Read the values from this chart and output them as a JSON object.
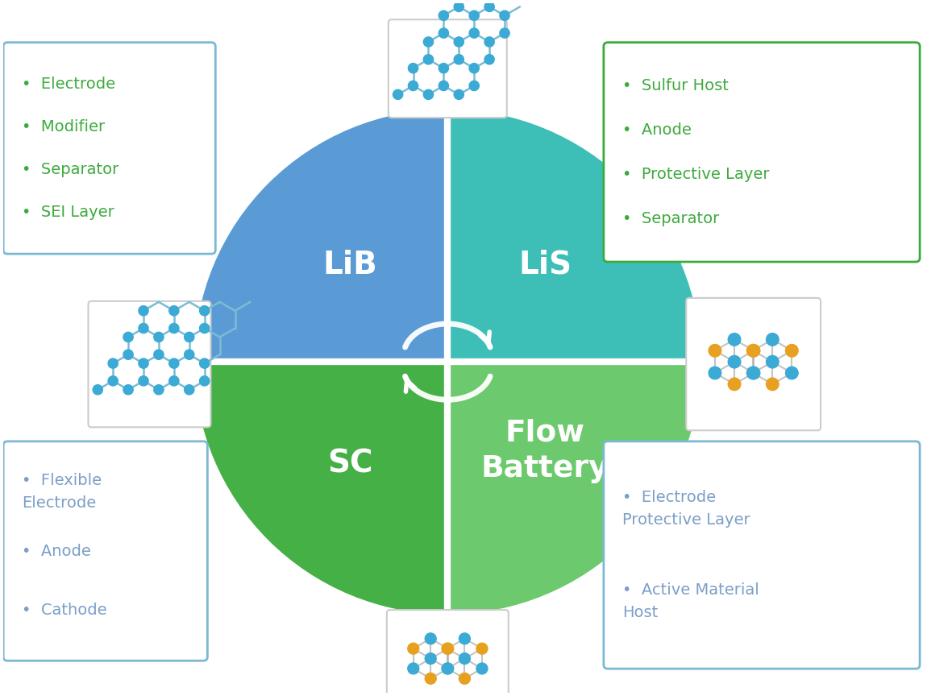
{
  "fig_width": 11.81,
  "fig_height": 8.64,
  "background_color": "#ffffff",
  "lib_color": "#5B9BD5",
  "lis_color": "#3DBFB8",
  "sc_color": "#45B045",
  "flow_color": "#6DC96D",
  "white": "#ffffff",
  "green_text": "#3DAA3D",
  "blue_text": "#7B9EC8",
  "lib_border": "#7BB8D4",
  "lis_border": "#3DAA3D",
  "sc_border": "#7BB8D4",
  "flow_border": "#7BB8D4",
  "lib_bullets": [
    "Electrode",
    "Modifier",
    "Separator",
    "SEI Layer"
  ],
  "lis_bullets": [
    "Sulfur Host",
    "Anode",
    "Protective Layer",
    "Separator"
  ],
  "sc_bullets": [
    "Flexible\nElectrode",
    "Anode",
    "Cathode"
  ],
  "flow_bullets": [
    "Electrode\nProtective Layer",
    "Active Material\nHost"
  ]
}
